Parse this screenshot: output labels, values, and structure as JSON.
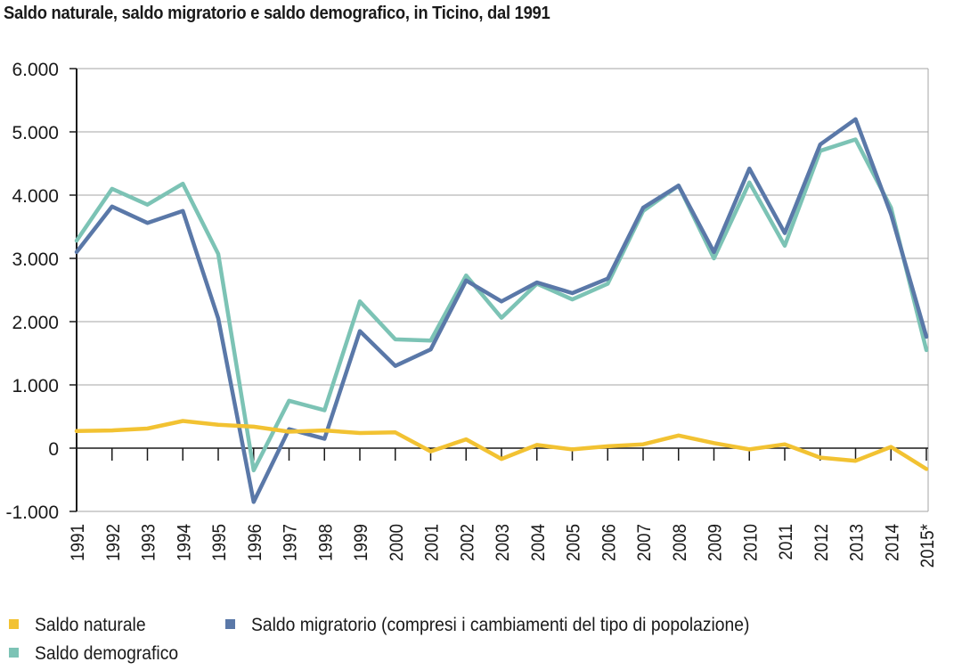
{
  "title": "Saldo naturale, saldo migratorio e saldo demografico, in Ticino, dal 1991",
  "colors": {
    "naturale": "#f2c232",
    "migratorio": "#5a78a8",
    "demografico": "#7cc3b5",
    "grid": "#a6a6a6",
    "axis": "#1a1a1a"
  },
  "legend": [
    {
      "key": "naturale",
      "label": "Saldo naturale"
    },
    {
      "key": "migratorio",
      "label": "Saldo migratorio (compresi i cambiamenti del tipo di popolazione)"
    },
    {
      "key": "demografico",
      "label": "Saldo demografico"
    }
  ],
  "chart_data": {
    "type": "line",
    "title": "Saldo naturale, saldo migratorio e saldo demografico, in Ticino, dal 1991",
    "x": [
      "1991",
      "1992",
      "1993",
      "1994",
      "1995",
      "1996",
      "1997",
      "1998",
      "1999",
      "2000",
      "2001",
      "2002",
      "2003",
      "2004",
      "2005",
      "2006",
      "2007",
      "2008",
      "2009",
      "2010",
      "2011",
      "2012",
      "2013",
      "2014",
      "2015*"
    ],
    "ylim": [
      -1000,
      6000
    ],
    "yticks": [
      6000,
      5000,
      4000,
      3000,
      2000,
      1000,
      0,
      -1000
    ],
    "ytick_labels": [
      "6.000",
      "5.000",
      "4.000",
      "3.000",
      "2.000",
      "1.000",
      "0",
      "-1.000"
    ],
    "grid": true,
    "legend_position": "bottom",
    "series": [
      {
        "name": "Saldo demografico",
        "key": "demografico",
        "values": [
          3280,
          4100,
          3850,
          4180,
          3070,
          -350,
          750,
          600,
          2320,
          1720,
          1700,
          2730,
          2060,
          2600,
          2350,
          2600,
          3750,
          4150,
          3000,
          4200,
          3200,
          4700,
          4880,
          3800,
          1550
        ]
      },
      {
        "name": "Saldo migratorio (compresi i cambiamenti del tipo di popolazione)",
        "key": "migratorio",
        "values": [
          3100,
          3820,
          3560,
          3750,
          2050,
          -850,
          300,
          150,
          1850,
          1300,
          1560,
          2650,
          2320,
          2620,
          2450,
          2680,
          3800,
          4150,
          3100,
          4420,
          3400,
          4800,
          5200,
          3700,
          1760
        ]
      },
      {
        "name": "Saldo naturale",
        "key": "naturale",
        "values": [
          270,
          280,
          310,
          430,
          370,
          340,
          260,
          280,
          240,
          250,
          -50,
          140,
          -170,
          50,
          -20,
          30,
          60,
          200,
          80,
          -20,
          60,
          -150,
          -200,
          20,
          -330
        ]
      }
    ]
  }
}
